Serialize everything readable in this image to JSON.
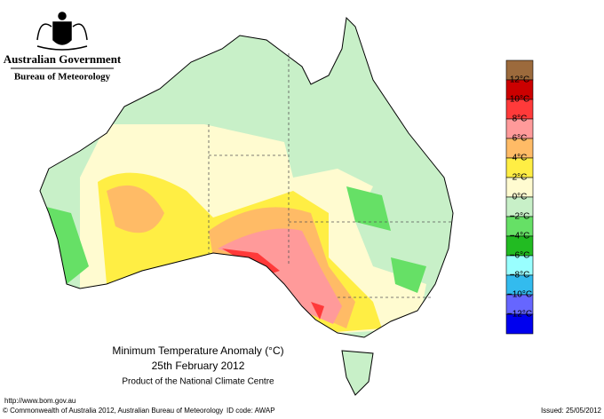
{
  "header": {
    "government": "Australian Government",
    "agency": "Bureau of Meteorology"
  },
  "title": "Minimum Temperature Anomaly (°C)",
  "date": "25th February 2012",
  "product": "Product of the National Climate Centre",
  "legend": {
    "colors": [
      "#9c6a3c",
      "#cc0000",
      "#ff3a3a",
      "#ff9a9a",
      "#ffbb66",
      "#ffee44",
      "#fffbd0",
      "#c8f0c8",
      "#66e066",
      "#22bb22",
      "#99ffff",
      "#33bbee",
      "#6666ff",
      "#0000ee"
    ],
    "labels": [
      "12°C",
      "10°C",
      "8°C",
      "6°C",
      "4°C",
      "2°C",
      "0°C",
      "−2°C",
      "−4°C",
      "−6°C",
      "−8°C",
      "−10°C",
      "−12°C"
    ]
  },
  "footer": {
    "url": "http://www.bom.gov.au",
    "copyright": "© Commonwealth of Australia 2012, Australian Bureau of Meteorology",
    "id": "ID code: AWAP",
    "issued": "Issued: 25/05/2012"
  }
}
